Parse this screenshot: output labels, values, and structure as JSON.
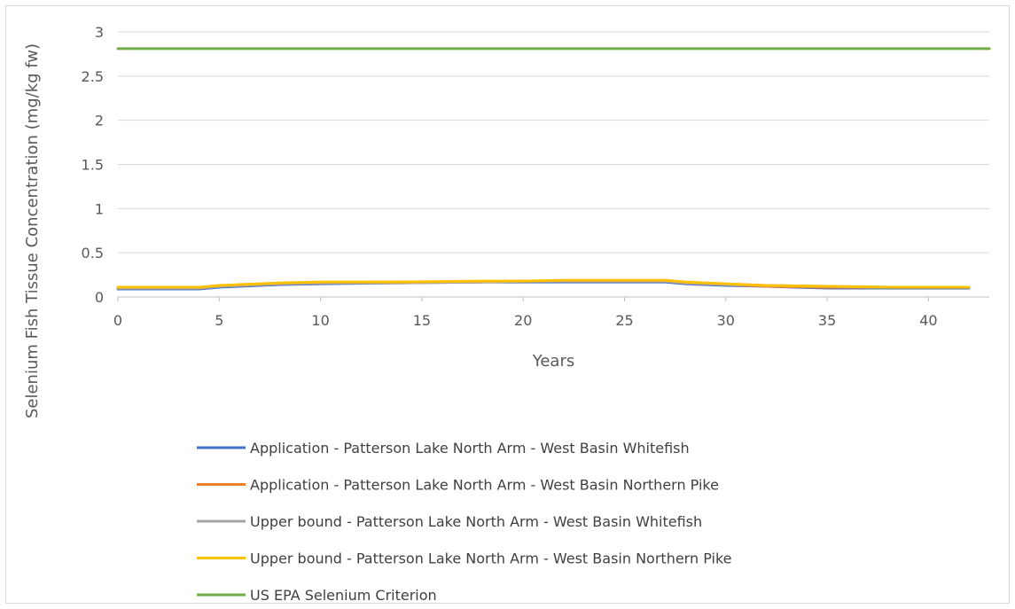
{
  "chart_data": {
    "type": "line",
    "title": "",
    "xlabel": "Years",
    "ylabel": "Selenium Fish Tissue Concentration (mg/kg fw)",
    "xlim": [
      0,
      43
    ],
    "ylim": [
      0,
      3
    ],
    "xticks": [
      0,
      5,
      10,
      15,
      20,
      25,
      30,
      35,
      40
    ],
    "yticks": [
      0,
      0.5,
      1,
      1.5,
      2,
      2.5,
      3
    ],
    "ytick_labels": [
      "0",
      "0.5",
      "1",
      "1.5",
      "2",
      "2.5",
      "3"
    ],
    "grid": "horizontal",
    "legend_position": "bottom",
    "series": [
      {
        "name": "Application - Patterson Lake North Arm - West Basin Whitefish",
        "color": "#4472c4",
        "x": [
          0,
          4,
          5,
          6,
          7,
          8,
          10,
          14,
          18,
          20,
          22,
          25,
          27,
          28,
          30,
          32,
          35,
          38,
          42
        ],
        "y": [
          0.09,
          0.09,
          0.11,
          0.12,
          0.13,
          0.14,
          0.15,
          0.16,
          0.17,
          0.17,
          0.17,
          0.17,
          0.17,
          0.15,
          0.13,
          0.12,
          0.1,
          0.1,
          0.1
        ]
      },
      {
        "name": "Application - Patterson Lake North Arm - West Basin Northern Pike",
        "color": "#ed7d31",
        "x": [
          0,
          4,
          5,
          6,
          7,
          8,
          10,
          14,
          18,
          20,
          22,
          25,
          27,
          28,
          30,
          32,
          35,
          38,
          42
        ],
        "y": [
          0.1,
          0.1,
          0.12,
          0.13,
          0.14,
          0.15,
          0.16,
          0.17,
          0.17,
          0.18,
          0.18,
          0.18,
          0.18,
          0.16,
          0.14,
          0.12,
          0.11,
          0.11,
          0.11
        ]
      },
      {
        "name": "Upper bound - Patterson Lake North Arm - West Basin Whitefish",
        "color": "#a5a5a5",
        "x": [
          0,
          4,
          5,
          6,
          7,
          8,
          10,
          14,
          18,
          20,
          22,
          25,
          27,
          28,
          30,
          32,
          35,
          38,
          42
        ],
        "y": [
          0.1,
          0.1,
          0.12,
          0.13,
          0.14,
          0.15,
          0.16,
          0.16,
          0.17,
          0.18,
          0.18,
          0.18,
          0.18,
          0.16,
          0.14,
          0.13,
          0.12,
          0.11,
          0.11
        ]
      },
      {
        "name": "Upper bound - Patterson Lake North Arm - West Basin Northern Pike",
        "color": "#ffc000",
        "x": [
          0,
          4,
          5,
          6,
          7,
          8,
          10,
          14,
          18,
          20,
          22,
          25,
          27,
          28,
          30,
          32,
          35,
          38,
          42
        ],
        "y": [
          0.11,
          0.11,
          0.13,
          0.14,
          0.15,
          0.16,
          0.17,
          0.17,
          0.18,
          0.18,
          0.19,
          0.19,
          0.19,
          0.17,
          0.15,
          0.13,
          0.12,
          0.11,
          0.11
        ]
      },
      {
        "name": "US EPA Selenium Criterion",
        "color": "#70ad47",
        "x": [
          0,
          43
        ],
        "y": [
          2.81,
          2.81
        ]
      }
    ]
  }
}
